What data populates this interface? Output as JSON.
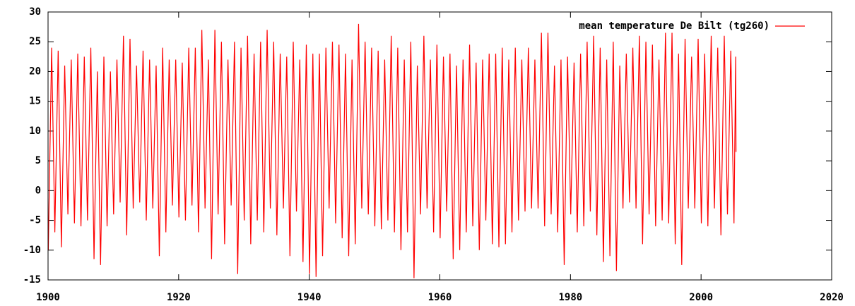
{
  "chart_data": {
    "type": "line",
    "legend": "top-right",
    "xlim": [
      1900,
      2020
    ],
    "xticks": [
      1900,
      1920,
      1940,
      1960,
      1980,
      2000,
      2020
    ],
    "ylim": [
      -15,
      30
    ],
    "yticks": [
      -15,
      -10,
      -5,
      0,
      5,
      10,
      15,
      20,
      25,
      30
    ],
    "x": [
      1900.04,
      1900.55,
      1901.04,
      1901.55,
      1902.04,
      1902.55,
      1903.04,
      1903.55,
      1904.04,
      1904.55,
      1905.04,
      1905.55,
      1906.04,
      1906.55,
      1907.04,
      1907.55,
      1908.04,
      1908.55,
      1909.04,
      1909.55,
      1910.04,
      1910.55,
      1911.04,
      1911.55,
      1912.04,
      1912.55,
      1913.04,
      1913.55,
      1914.04,
      1914.55,
      1915.04,
      1915.55,
      1916.04,
      1916.55,
      1917.04,
      1917.55,
      1918.04,
      1918.55,
      1919.04,
      1919.55,
      1920.04,
      1920.55,
      1921.04,
      1921.55,
      1922.04,
      1922.55,
      1923.04,
      1923.55,
      1924.04,
      1924.55,
      1925.04,
      1925.55,
      1926.04,
      1926.55,
      1927.04,
      1927.55,
      1928.04,
      1928.55,
      1929.04,
      1929.55,
      1930.04,
      1930.55,
      1931.04,
      1931.55,
      1932.04,
      1932.55,
      1933.04,
      1933.55,
      1934.04,
      1934.55,
      1935.04,
      1935.55,
      1936.04,
      1936.55,
      1937.04,
      1937.55,
      1938.04,
      1938.55,
      1939.04,
      1939.55,
      1940.04,
      1940.55,
      1941.04,
      1941.55,
      1942.04,
      1942.55,
      1943.04,
      1943.55,
      1944.04,
      1944.55,
      1945.04,
      1945.55,
      1946.04,
      1946.55,
      1947.04,
      1947.55,
      1948.04,
      1948.55,
      1949.04,
      1949.55,
      1950.04,
      1950.55,
      1951.04,
      1951.55,
      1952.04,
      1952.55,
      1953.04,
      1953.55,
      1954.04,
      1954.55,
      1955.04,
      1955.55,
      1956.04,
      1956.55,
      1957.04,
      1957.55,
      1958.04,
      1958.55,
      1959.04,
      1959.55,
      1960.04,
      1960.55,
      1961.04,
      1961.55,
      1962.04,
      1962.55,
      1963.04,
      1963.55,
      1964.04,
      1964.55,
      1965.04,
      1965.55,
      1966.04,
      1966.55,
      1967.04,
      1967.55,
      1968.04,
      1968.55,
      1969.04,
      1969.55,
      1970.04,
      1970.55,
      1971.04,
      1971.55,
      1972.04,
      1972.55,
      1973.04,
      1973.55,
      1974.04,
      1974.55,
      1975.04,
      1975.55,
      1976.04,
      1976.55,
      1977.04,
      1977.55,
      1978.04,
      1978.55,
      1979.04,
      1979.55,
      1980.04,
      1980.55,
      1981.04,
      1981.55,
      1982.04,
      1982.55,
      1983.04,
      1983.55,
      1984.04,
      1984.55,
      1985.04,
      1985.55,
      1986.04,
      1986.55,
      1987.04,
      1987.55,
      1988.04,
      1988.55,
      1989.04,
      1989.55,
      1990.04,
      1990.55,
      1991.04,
      1991.55,
      1992.04,
      1992.55,
      1993.04,
      1993.55,
      1994.04,
      1994.55,
      1995.04,
      1995.55,
      1996.04,
      1996.55,
      1997.04,
      1997.55,
      1998.04,
      1998.55,
      1999.04,
      1999.55,
      2000.04,
      2000.55,
      2001.04,
      2001.55,
      2002.04,
      2002.55,
      2003.04,
      2003.55,
      2004.04,
      2004.55,
      2005.04,
      2005.3,
      2005.35
    ],
    "series": [
      {
        "name": "mean temperature De Bilt (tg260)",
        "color": "#ff0000",
        "values": [
          -10,
          24,
          -7,
          23.5,
          -9.5,
          21,
          -4,
          22,
          -5.5,
          23,
          -6,
          22.5,
          -5,
          24,
          -11.5,
          20,
          -12.5,
          22.5,
          -6,
          20,
          -4,
          22,
          -2,
          26,
          -7.5,
          25.5,
          -3,
          21,
          -2,
          23.5,
          -5,
          22,
          -3,
          21,
          -11,
          24,
          -7,
          22,
          -2.5,
          22,
          -4.5,
          21.5,
          -5,
          24,
          -2.5,
          24,
          -7,
          27,
          -3,
          22,
          -11.5,
          27,
          -4,
          25,
          -9,
          22,
          -2.5,
          25,
          -14,
          24,
          -5,
          26,
          -9,
          23,
          -5,
          25,
          -7,
          27,
          -3,
          25,
          -7.5,
          23,
          -3,
          22.5,
          -11,
          25,
          -3.5,
          22,
          -12,
          24.5,
          -14,
          23,
          -14.5,
          23,
          -11,
          24,
          -3,
          25,
          -5.5,
          24.5,
          -8,
          23,
          -11,
          22,
          -9,
          28,
          -3,
          25,
          -4,
          24,
          -6,
          23.5,
          -6.5,
          22,
          -5,
          26,
          -7,
          24,
          -10,
          22,
          -7,
          25,
          -14.7,
          21,
          -4,
          26,
          -3,
          22,
          -7,
          24.5,
          -8,
          22.5,
          -3.5,
          23,
          -11.5,
          21,
          -10,
          22,
          -7,
          24.5,
          -6,
          21.5,
          -10,
          22,
          -5,
          23,
          -9,
          23,
          -9.5,
          24,
          -9,
          22,
          -7,
          24,
          -5,
          22,
          -3.5,
          24,
          -3,
          22,
          -3,
          26.5,
          -6,
          26.5,
          -4,
          21,
          -7,
          22,
          -12.5,
          22.5,
          -4,
          21.5,
          -7,
          23,
          -6,
          25,
          -3.5,
          26,
          -7.5,
          24,
          -12,
          22,
          -11,
          25,
          -13.5,
          21,
          -3,
          23,
          -2,
          24,
          -3,
          26,
          -9,
          25,
          -4,
          24.5,
          -6,
          22,
          -5,
          26.5,
          -5.5,
          26.5,
          -9,
          23,
          -12.5,
          25.5,
          -3,
          22.5,
          -3,
          25.5,
          -5.5,
          23,
          -6,
          26,
          -3,
          24,
          -7.5,
          26,
          -4,
          23.5,
          -5.5,
          22.5,
          6.5
        ]
      }
    ]
  }
}
